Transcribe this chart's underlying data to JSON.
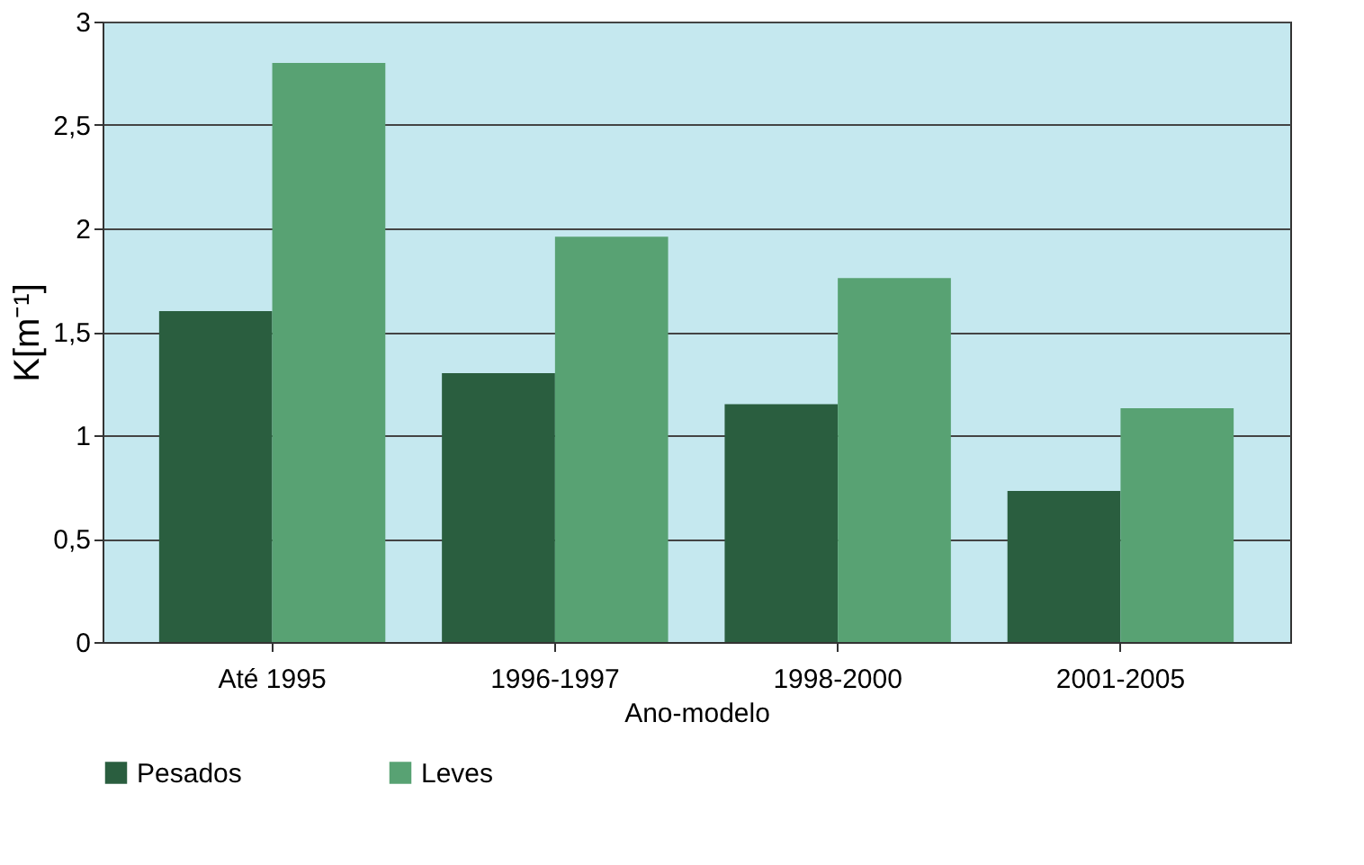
{
  "chart_data": {
    "type": "bar",
    "xlabel": "Ano-modelo",
    "ylabel": "K[m⁻¹]",
    "categories": [
      "Até 1995",
      "1996-1997",
      "1998-2000",
      "2001-2005"
    ],
    "series": [
      {
        "name": "Pesados",
        "color": "#2a5e3f",
        "values": [
          1.6,
          1.3,
          1.15,
          0.73
        ]
      },
      {
        "name": "Leves",
        "color": "#58a273",
        "values": [
          2.8,
          1.96,
          1.76,
          1.13
        ]
      }
    ],
    "ylim": [
      0,
      3
    ],
    "yticks": [
      0,
      {
        "value": 0.5,
        "label": "0,5"
      },
      1,
      {
        "value": 1.5,
        "label": "1,5"
      },
      2,
      {
        "value": 2.5,
        "label": "2,5"
      },
      3
    ],
    "grid": "y",
    "legend": "bottom"
  }
}
